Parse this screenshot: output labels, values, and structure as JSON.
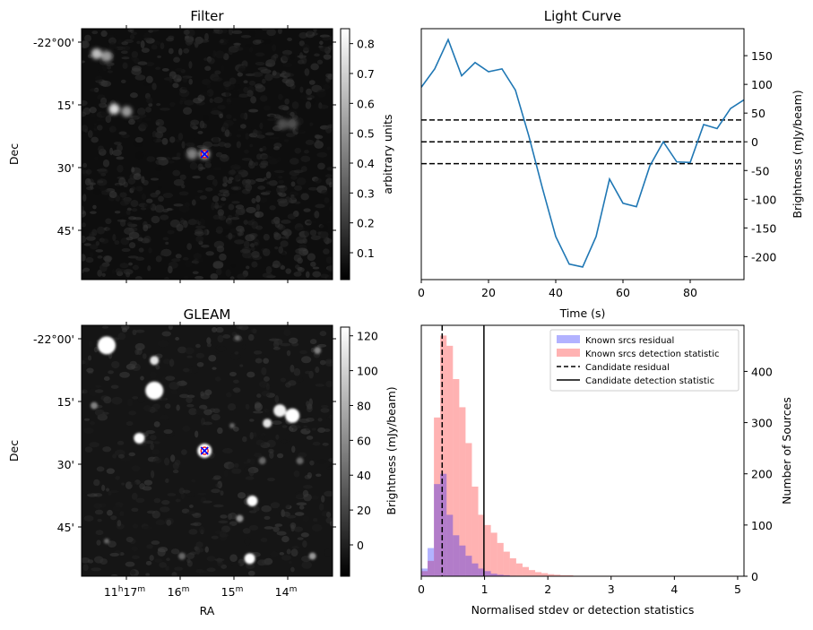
{
  "chart_data": [
    {
      "type": "heatmap",
      "title": "Filter",
      "ylabel": "Dec",
      "colorbar_label": "arbitrary units",
      "colorbar_ticks": [
        "0.1",
        "0.2",
        "0.3",
        "0.4",
        "0.5",
        "0.6",
        "0.7",
        "0.8"
      ],
      "colorbar_values": [
        0.1,
        0.2,
        0.3,
        0.4,
        0.5,
        0.6,
        0.7,
        0.8
      ],
      "colorbar_range": [
        0.01,
        0.85
      ],
      "dec_ticks": [
        "-22°00'",
        "15'",
        "30'",
        "45'"
      ],
      "marker": "x",
      "sources": [
        {
          "x": 0.06,
          "y": 0.1,
          "v": 0.75
        },
        {
          "x": 0.1,
          "y": 0.11,
          "v": 0.6
        },
        {
          "x": 0.13,
          "y": 0.32,
          "v": 0.85
        },
        {
          "x": 0.18,
          "y": 0.33,
          "v": 0.6
        },
        {
          "x": 0.44,
          "y": 0.5,
          "v": 0.5
        },
        {
          "x": 0.49,
          "y": 0.5,
          "v": 0.7
        },
        {
          "x": 0.8,
          "y": 0.38,
          "v": 0.3
        },
        {
          "x": 0.84,
          "y": 0.38,
          "v": 0.3
        }
      ],
      "candidate": {
        "x": 0.49,
        "y": 0.5
      }
    },
    {
      "type": "heatmap",
      "title": "GLEAM",
      "xlabel": "RA",
      "ylabel": "Dec",
      "colorbar_label": "Brightness (mJy/beam)",
      "colorbar_ticks": [
        "0",
        "20",
        "40",
        "60",
        "80",
        "100",
        "120"
      ],
      "colorbar_values": [
        0,
        20,
        40,
        60,
        80,
        100,
        120
      ],
      "colorbar_range": [
        -18,
        125
      ],
      "dec_ticks": [
        "-22°00'",
        "15'",
        "30'",
        "45'"
      ],
      "ra_ticks": [
        {
          "main": "11",
          "h": "h",
          "mid": "17",
          "m": "m"
        },
        {
          "main": "16",
          "h": "",
          "mid": "",
          "m": "m"
        },
        {
          "main": "15",
          "h": "",
          "mid": "",
          "m": "m"
        },
        {
          "main": "14",
          "h": "",
          "mid": "",
          "m": "m"
        }
      ],
      "marker": "x",
      "sources": [
        {
          "x": 0.1,
          "y": 0.08,
          "r": 10,
          "v": 1.0
        },
        {
          "x": 0.29,
          "y": 0.26,
          "r": 10,
          "v": 1.0
        },
        {
          "x": 0.29,
          "y": 0.14,
          "r": 5,
          "v": 0.9
        },
        {
          "x": 0.23,
          "y": 0.45,
          "r": 6,
          "v": 1.0
        },
        {
          "x": 0.49,
          "y": 0.5,
          "r": 8,
          "v": 1.0
        },
        {
          "x": 0.79,
          "y": 0.34,
          "r": 7,
          "v": 0.95
        },
        {
          "x": 0.84,
          "y": 0.36,
          "r": 8,
          "v": 1.0
        },
        {
          "x": 0.74,
          "y": 0.39,
          "r": 5,
          "v": 0.9
        },
        {
          "x": 0.68,
          "y": 0.7,
          "r": 6,
          "v": 1.0
        },
        {
          "x": 0.67,
          "y": 0.93,
          "r": 6,
          "v": 1.0
        },
        {
          "x": 0.63,
          "y": 0.77,
          "r": 4,
          "v": 0.6
        },
        {
          "x": 0.92,
          "y": 0.92,
          "r": 4,
          "v": 0.6
        },
        {
          "x": 0.94,
          "y": 0.1,
          "r": 4,
          "v": 0.5
        },
        {
          "x": 0.62,
          "y": 0.05,
          "r": 3,
          "v": 0.4
        },
        {
          "x": 0.05,
          "y": 0.32,
          "r": 4,
          "v": 0.5
        },
        {
          "x": 0.72,
          "y": 0.54,
          "r": 4,
          "v": 0.4
        },
        {
          "x": 0.4,
          "y": 0.92,
          "r": 4,
          "v": 0.4
        },
        {
          "x": 0.6,
          "y": 0.4,
          "r": 3,
          "v": 0.4
        },
        {
          "x": 0.87,
          "y": 0.54,
          "r": 4,
          "v": 0.4
        },
        {
          "x": 0.1,
          "y": 0.86,
          "r": 3,
          "v": 0.4
        }
      ],
      "candidate": {
        "x": 0.49,
        "y": 0.5
      }
    },
    {
      "type": "line",
      "title": "Light Curve",
      "xlabel": "Time (s)",
      "ylabel": "Brightness (mJy/beam)",
      "xlim": [
        0,
        96
      ],
      "ylim": [
        -240,
        197
      ],
      "xticks": [
        0,
        20,
        40,
        60,
        80
      ],
      "yticks": [
        -200,
        -150,
        -100,
        -50,
        0,
        50,
        100,
        150
      ],
      "x": [
        0,
        4,
        8,
        12,
        16,
        20,
        24,
        28,
        32,
        36,
        40,
        44,
        48,
        52,
        56,
        60,
        64,
        68,
        72,
        76,
        80,
        84,
        88,
        92,
        96
      ],
      "y": [
        95,
        127,
        178,
        115,
        138,
        122,
        127,
        90,
        10,
        -80,
        -165,
        -213,
        -218,
        -165,
        -65,
        -107,
        -113,
        -42,
        0,
        -35,
        -36,
        30,
        23,
        58,
        73
      ],
      "color": "#1f77b4",
      "hlines": [
        38,
        0,
        -38
      ]
    },
    {
      "type": "bar",
      "xlabel": "Normalised stdev or detection statistics",
      "ylabel": "Number of Sources",
      "xlim": [
        0,
        5.1
      ],
      "ylim": [
        0,
        490
      ],
      "xticks": [
        0,
        1,
        2,
        3,
        4,
        5
      ],
      "yticks": [
        0,
        100,
        200,
        300,
        400
      ],
      "bin_width": 0.1,
      "colors": {
        "residual": "#0000ff",
        "detection": "#ff0000"
      },
      "series": [
        {
          "name": "Known srcs residual",
          "start": 0.0,
          "values": [
            15,
            55,
            180,
            200,
            120,
            80,
            60,
            40,
            25,
            15,
            10,
            5,
            3,
            2,
            1
          ]
        },
        {
          "name": "Known srcs detection statistic",
          "start": 0.0,
          "values": [
            10,
            30,
            310,
            470,
            450,
            385,
            330,
            260,
            175,
            120,
            100,
            85,
            65,
            48,
            35,
            25,
            18,
            12,
            8,
            6,
            4,
            3,
            2,
            2,
            1,
            1,
            1,
            1,
            1,
            1,
            1,
            1,
            1,
            1,
            1,
            1,
            1,
            1,
            1,
            1,
            1,
            1,
            1,
            1,
            1,
            1,
            1,
            1,
            1,
            1
          ]
        }
      ],
      "vlines": [
        {
          "name": "Candidate residual",
          "x": 0.33,
          "style": "dashed"
        },
        {
          "name": "Candidate detection statistic",
          "x": 0.99,
          "style": "solid"
        }
      ],
      "legend": "top-right"
    }
  ]
}
